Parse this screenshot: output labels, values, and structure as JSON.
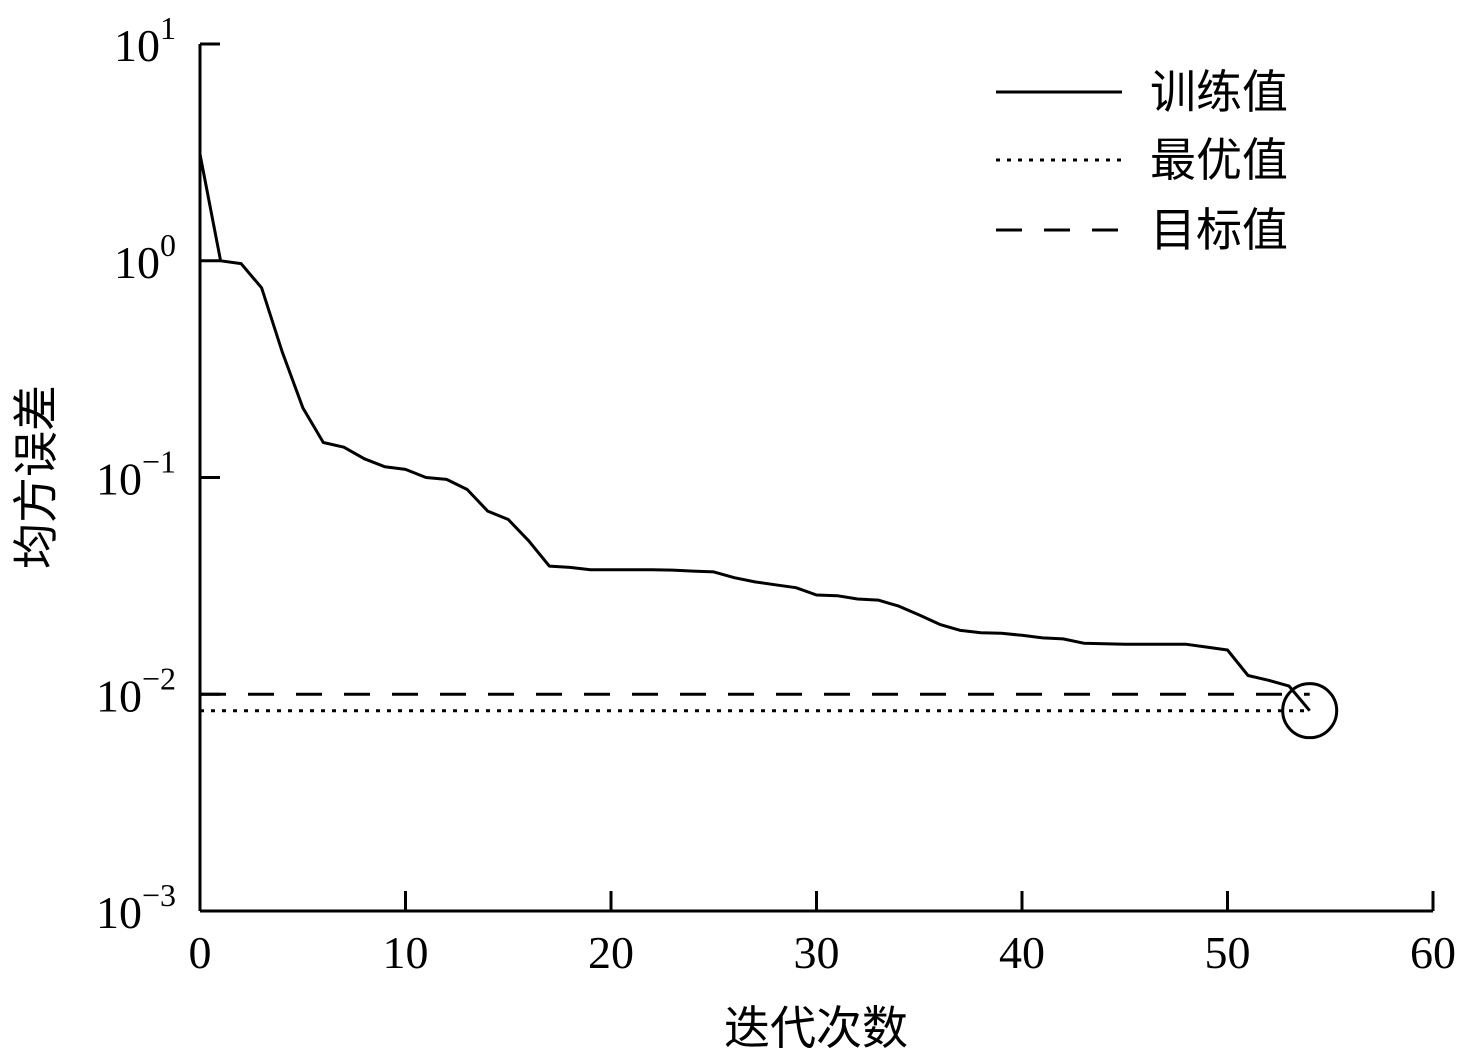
{
  "chart_data": {
    "type": "line",
    "xlabel": "迭代次数",
    "ylabel": "均方误差",
    "xlim": [
      0,
      60
    ],
    "ylim": [
      0.001,
      10
    ],
    "yscale": "log",
    "grid": false,
    "legend_position": "top-right",
    "x_ticks": [
      "0",
      "10",
      "20",
      "30",
      "40",
      "50",
      "60"
    ],
    "y_ticks": [
      {
        "value": 10,
        "base": "10",
        "exp": "1"
      },
      {
        "value": 1,
        "base": "10",
        "exp": "0"
      },
      {
        "value": 0.1,
        "base": "10",
        "exp": "−1"
      },
      {
        "value": 0.01,
        "base": "10",
        "exp": "−2"
      },
      {
        "value": 0.001,
        "base": "10",
        "exp": "−3"
      }
    ],
    "series": [
      {
        "name": "训练值",
        "style": "solid",
        "x": [
          0,
          1,
          2,
          3,
          4,
          5,
          6,
          7,
          8,
          9,
          10,
          11,
          12,
          13,
          14,
          15,
          16,
          17,
          18,
          19,
          20,
          21,
          22,
          23,
          24,
          25,
          26,
          27,
          28,
          29,
          30,
          31,
          32,
          33,
          34,
          35,
          36,
          37,
          38,
          39,
          40,
          41,
          42,
          43,
          44,
          45,
          46,
          47,
          48,
          49,
          50,
          51,
          52,
          53,
          54
        ],
        "y": [
          3.1,
          1.0,
          0.97,
          0.75,
          0.38,
          0.21,
          0.145,
          0.138,
          0.122,
          0.112,
          0.109,
          0.1,
          0.098,
          0.088,
          0.07,
          0.064,
          0.051,
          0.039,
          0.0385,
          0.0375,
          0.0375,
          0.0375,
          0.0375,
          0.0374,
          0.037,
          0.0367,
          0.0345,
          0.033,
          0.032,
          0.031,
          0.0287,
          0.0285,
          0.0275,
          0.0272,
          0.0255,
          0.0232,
          0.021,
          0.0197,
          0.0192,
          0.0191,
          0.0187,
          0.0182,
          0.018,
          0.0172,
          0.0171,
          0.017,
          0.017,
          0.017,
          0.017,
          0.0165,
          0.016,
          0.0122,
          0.0116,
          0.0109,
          0.0084
        ]
      },
      {
        "name": "最优值",
        "style": "dotted",
        "x": [
          0,
          54
        ],
        "y": [
          0.0084,
          0.0084
        ]
      },
      {
        "name": "目标值",
        "style": "dashed",
        "x": [
          0,
          54
        ],
        "y": [
          0.01,
          0.01
        ]
      }
    ],
    "annotations": [
      {
        "type": "circle-marker",
        "x": 54,
        "y": 0.0084
      }
    ]
  }
}
